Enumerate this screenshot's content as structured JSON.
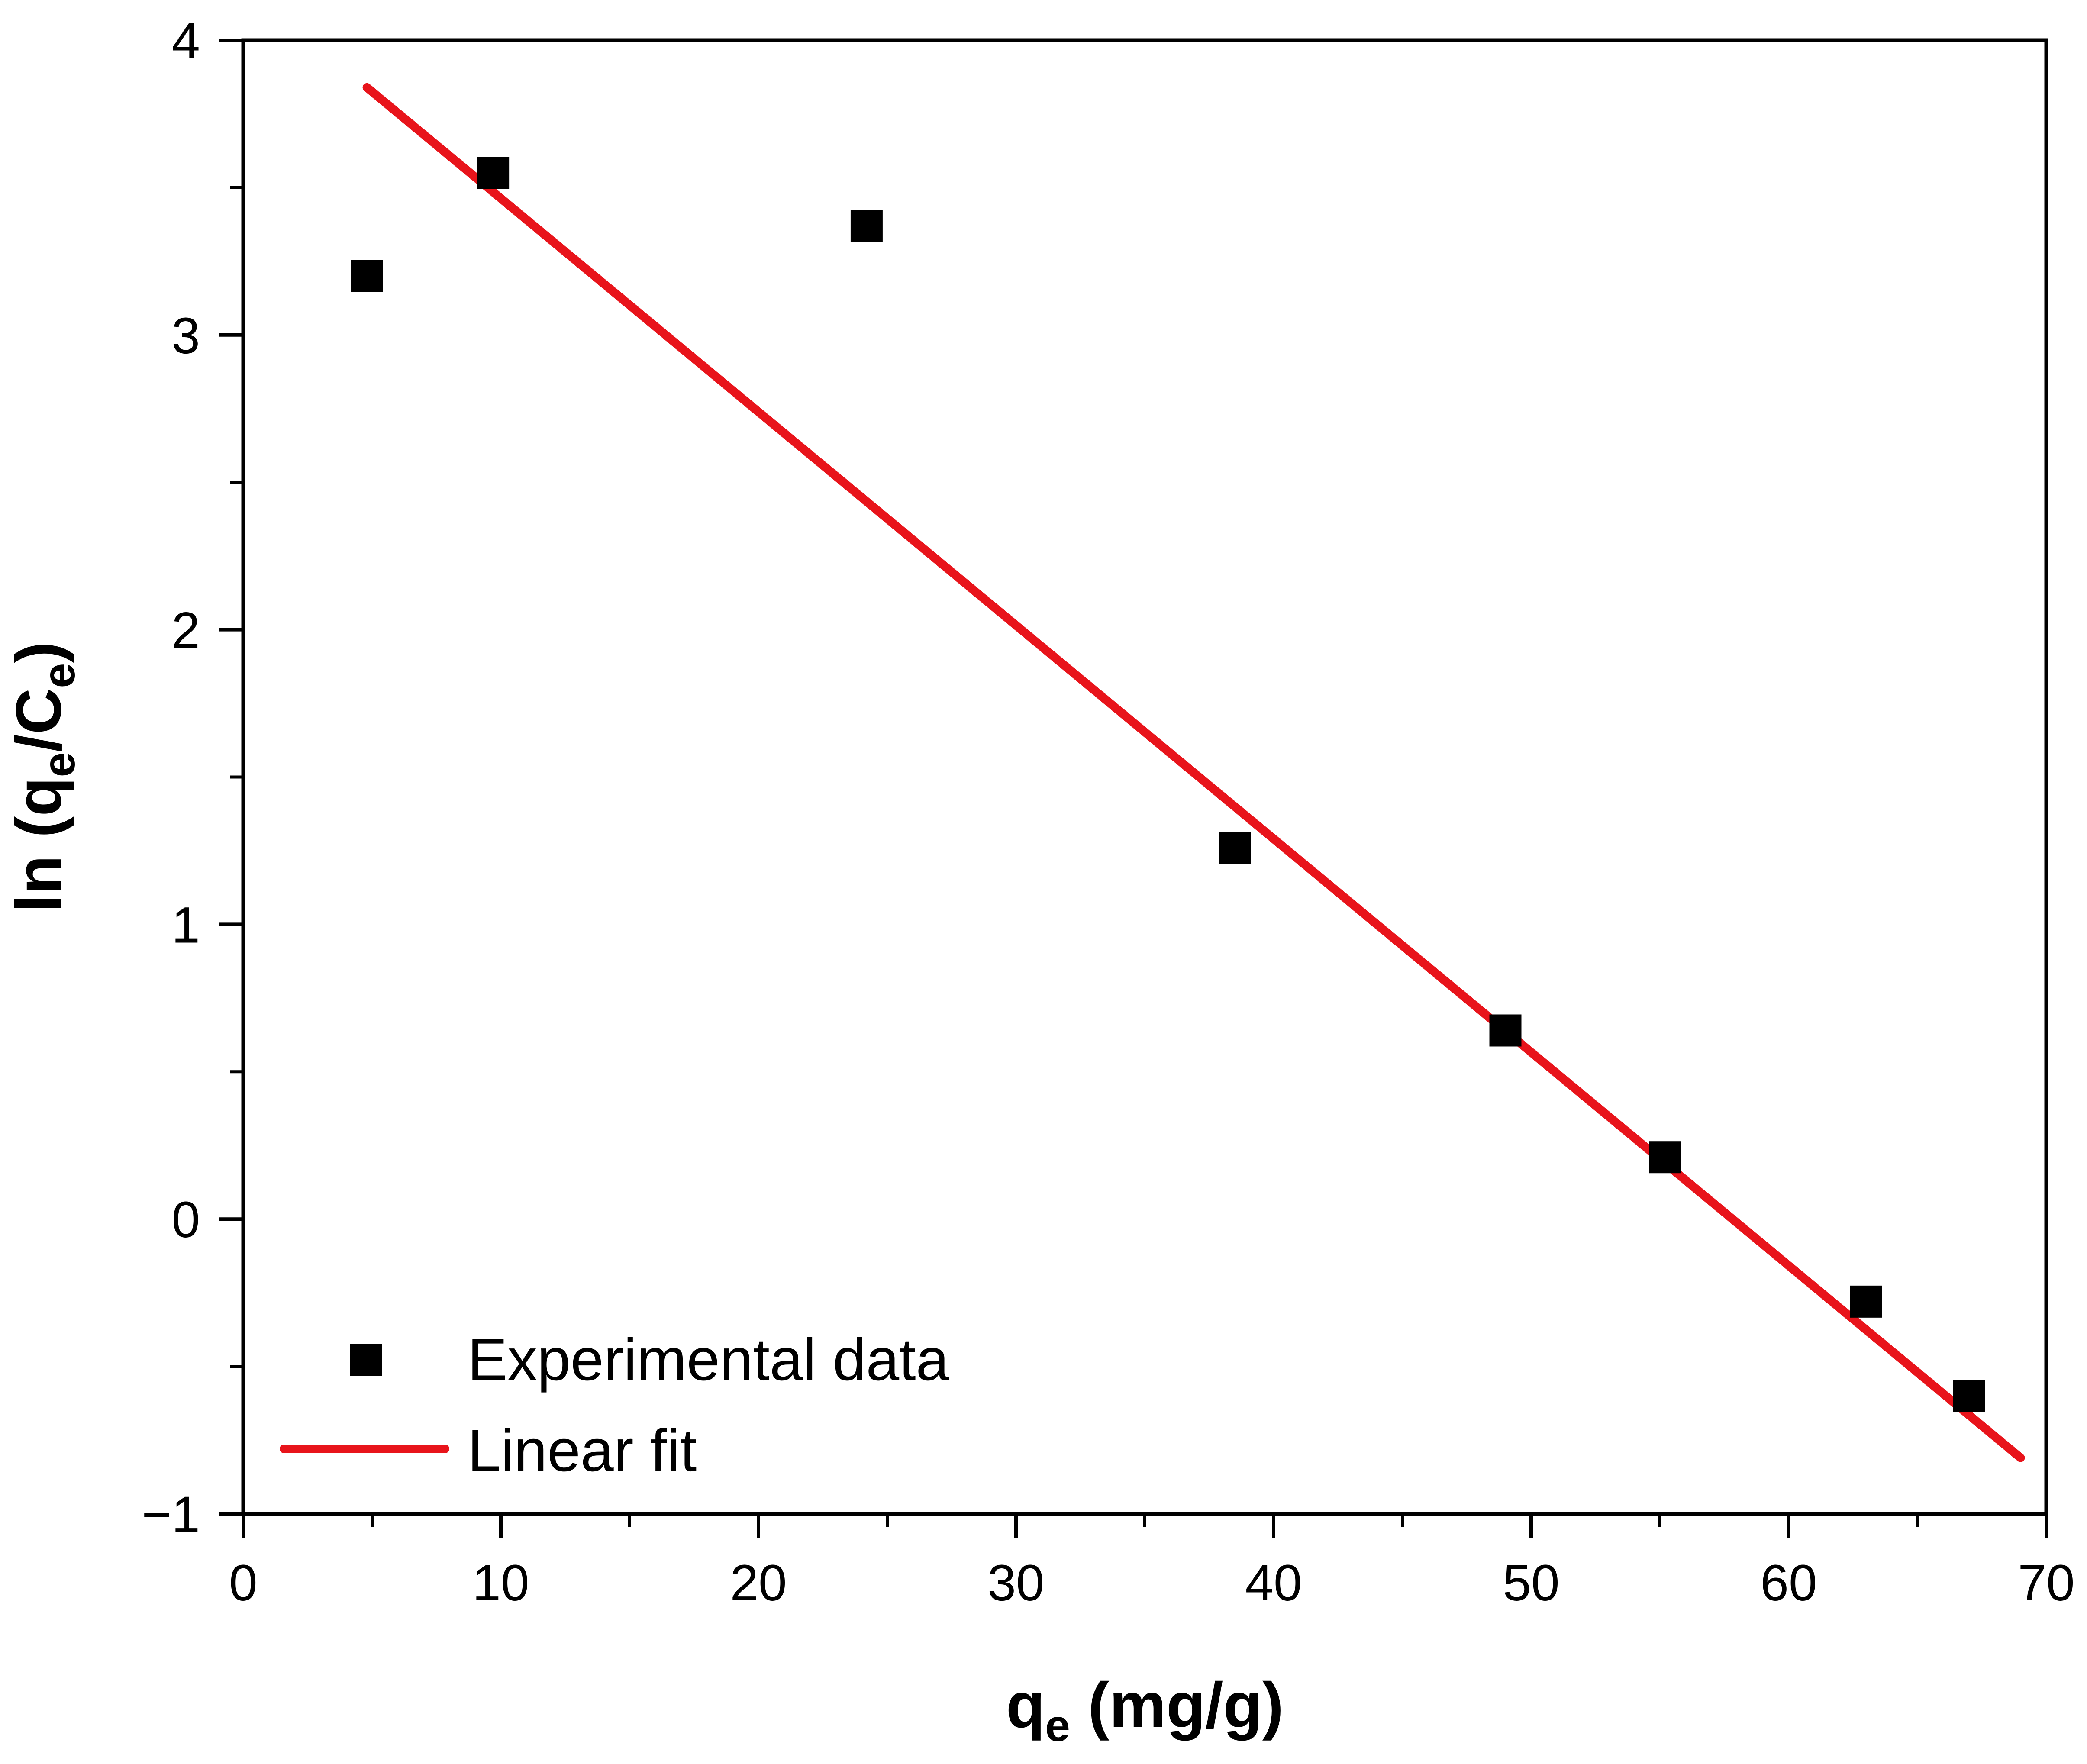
{
  "chart_data": {
    "type": "scatter",
    "title": "",
    "xlabel": {
      "main": "q",
      "sub": "e",
      "rest": " (mg/g)"
    },
    "ylabel": {
      "prefix": "ln (q",
      "sub1": "e",
      "mid": "/C",
      "sub2": "e",
      "suffix": ")"
    },
    "xlim": [
      0,
      70
    ],
    "ylim": [
      -1,
      4
    ],
    "x_ticks": [
      0,
      10,
      20,
      30,
      40,
      50,
      60,
      70
    ],
    "y_ticks": [
      -1,
      0,
      1,
      2,
      3,
      4
    ],
    "x_tick_labels": [
      "0",
      "10",
      "20",
      "30",
      "40",
      "50",
      "60",
      "70"
    ],
    "y_tick_labels": [
      "−1",
      "0",
      "1",
      "2",
      "3",
      "4"
    ],
    "x_minor_step": 5,
    "y_minor_step": 0.5,
    "grid": false,
    "legend_position": "bottom-left",
    "series": [
      {
        "name": "Experimental data",
        "kind": "scatter",
        "marker": "square",
        "color": "#000000",
        "x": [
          4.8,
          9.7,
          24.2,
          38.5,
          49.0,
          55.2,
          63.0,
          67.0
        ],
        "y": [
          3.2,
          3.55,
          3.37,
          1.26,
          0.64,
          0.21,
          -0.28,
          -0.6
        ]
      },
      {
        "name": "Linear fit",
        "kind": "line",
        "color": "#e8141b",
        "x": [
          4.8,
          69.0
        ],
        "y": [
          3.84,
          -0.81
        ]
      }
    ]
  }
}
